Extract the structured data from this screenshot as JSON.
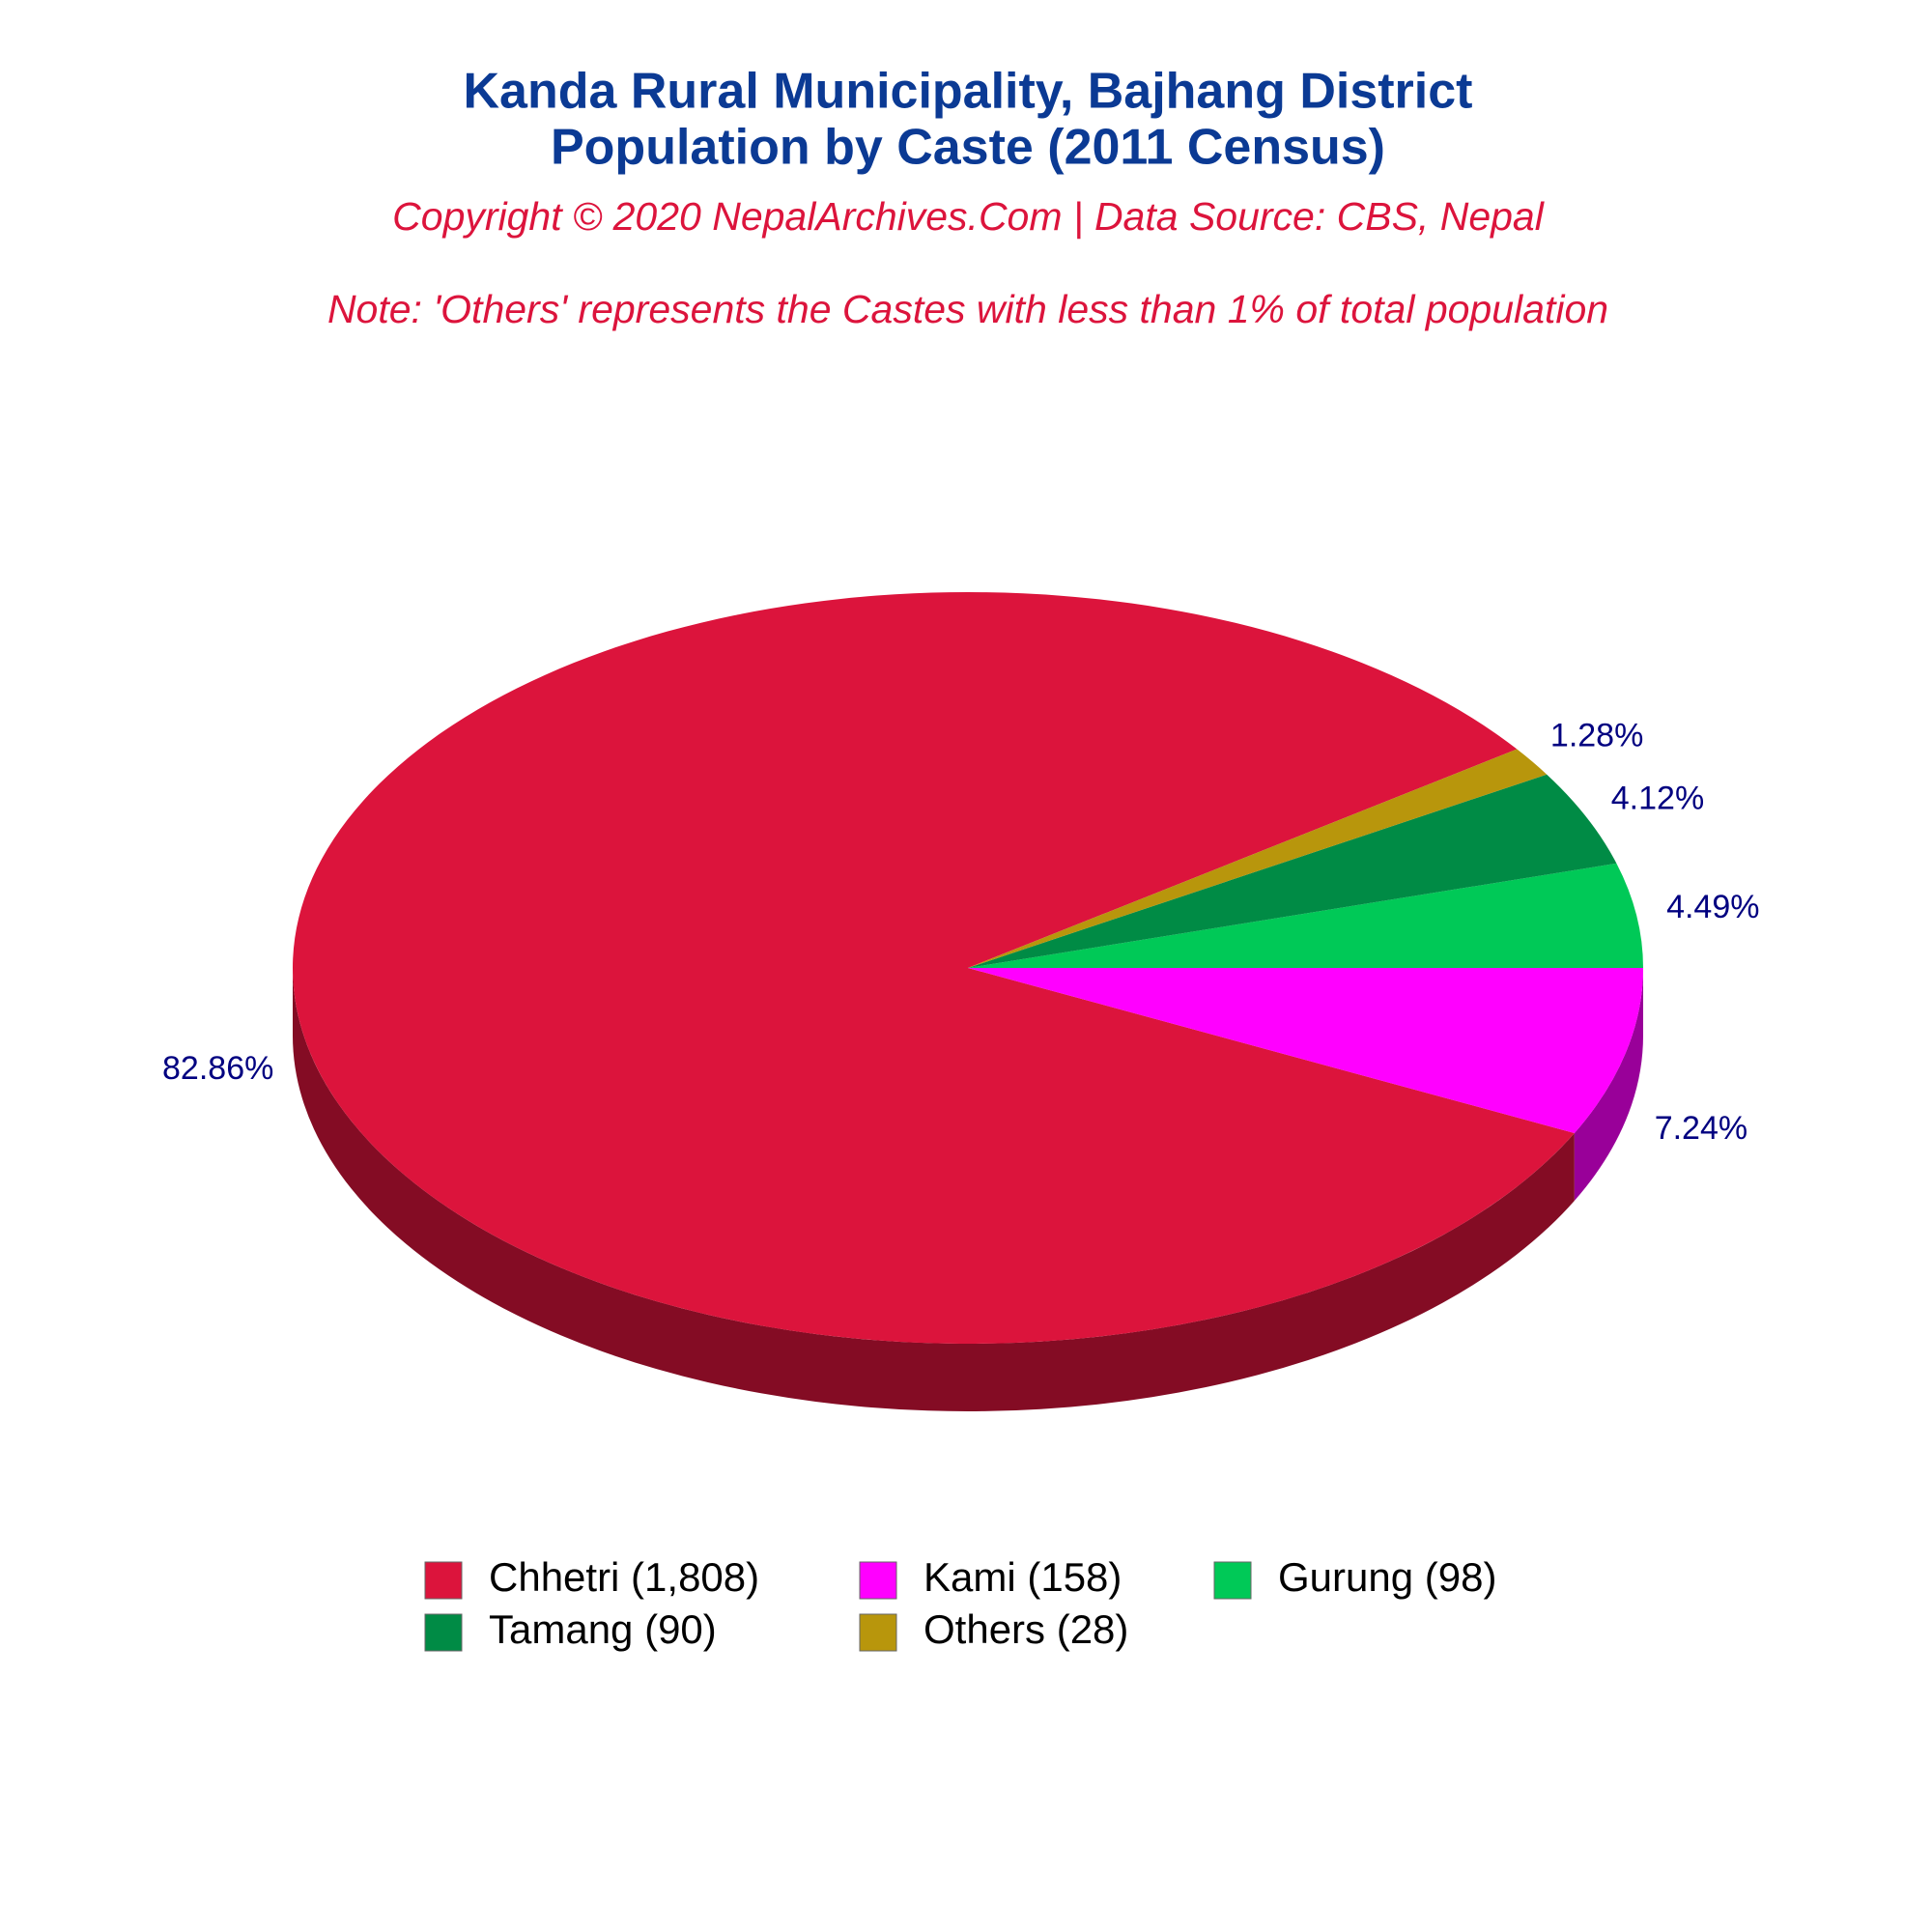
{
  "chart_data": {
    "type": "pie",
    "title": "Kanda Rural Municipality, Bajhang District",
    "subtitle": "Population by Caste (2011 Census)",
    "copyright": "Copyright © 2020 NepalArchives.Com | Data Source: CBS, Nepal",
    "note": "Note: 'Others' represents the Castes with less than 1% of total population",
    "categories": [
      "Chhetri (1,808)",
      "Kami (158)",
      "Gurung (98)",
      "Tamang (90)",
      "Others (28)"
    ],
    "values": [
      82.86,
      7.24,
      4.49,
      4.12,
      1.28
    ],
    "value_labels": [
      "82.86%",
      "7.24%",
      "4.49%",
      "4.12%",
      "1.28%"
    ],
    "colors": [
      "#dc143c",
      "#ff00ff",
      "#00c957",
      "#008b45",
      "#b8960c"
    ]
  }
}
